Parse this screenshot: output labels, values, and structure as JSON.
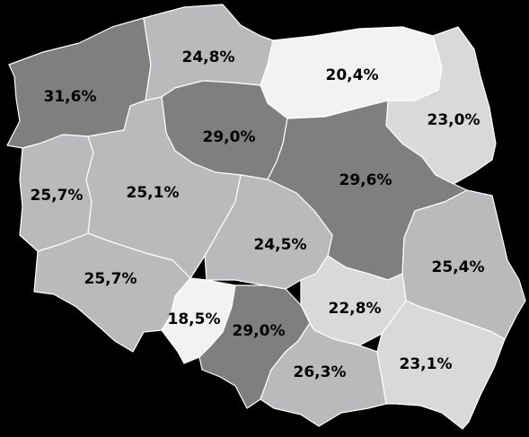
{
  "map": {
    "colors": {
      "background": "#000000",
      "border": "#ffffff",
      "lightest": "#f2f2f3",
      "light": "#d9d9db",
      "medium": "#bababc",
      "dark": "#7f7f80"
    },
    "regions": [
      {
        "id": "zachodniopomorskie",
        "label": "31,6%",
        "value": 31.6,
        "shade": "dark"
      },
      {
        "id": "pomorskie",
        "label": "24,8%",
        "value": 24.8,
        "shade": "medium"
      },
      {
        "id": "warminsko-mazurskie",
        "label": "20,4%",
        "value": 20.4,
        "shade": "lightest"
      },
      {
        "id": "podlaskie",
        "label": "23,0%",
        "value": 23.0,
        "shade": "light"
      },
      {
        "id": "kujawsko-pomorskie",
        "label": "29,0%",
        "value": 29.0,
        "shade": "dark"
      },
      {
        "id": "mazowieckie",
        "label": "29,6%",
        "value": 29.6,
        "shade": "dark"
      },
      {
        "id": "lubuskie",
        "label": "25,7%",
        "value": 25.7,
        "shade": "medium"
      },
      {
        "id": "wielkopolskie",
        "label": "25,1%",
        "value": 25.1,
        "shade": "medium"
      },
      {
        "id": "lodzkie",
        "label": "24,5%",
        "value": 24.5,
        "shade": "medium"
      },
      {
        "id": "lubelskie",
        "label": "25,4%",
        "value": 25.4,
        "shade": "medium"
      },
      {
        "id": "dolnoslaskie",
        "label": "25,7%",
        "value": 25.7,
        "shade": "medium"
      },
      {
        "id": "opolskie",
        "label": "18,5%",
        "value": 18.5,
        "shade": "lightest"
      },
      {
        "id": "slaskie",
        "label": "29,0%",
        "value": 29.0,
        "shade": "dark"
      },
      {
        "id": "swietokrzyskie",
        "label": "22,8%",
        "value": 22.8,
        "shade": "light"
      },
      {
        "id": "malopolskie",
        "label": "26,3%",
        "value": 26.3,
        "shade": "medium"
      },
      {
        "id": "podkarpackie",
        "label": "23,1%",
        "value": 23.1,
        "shade": "light"
      }
    ]
  }
}
